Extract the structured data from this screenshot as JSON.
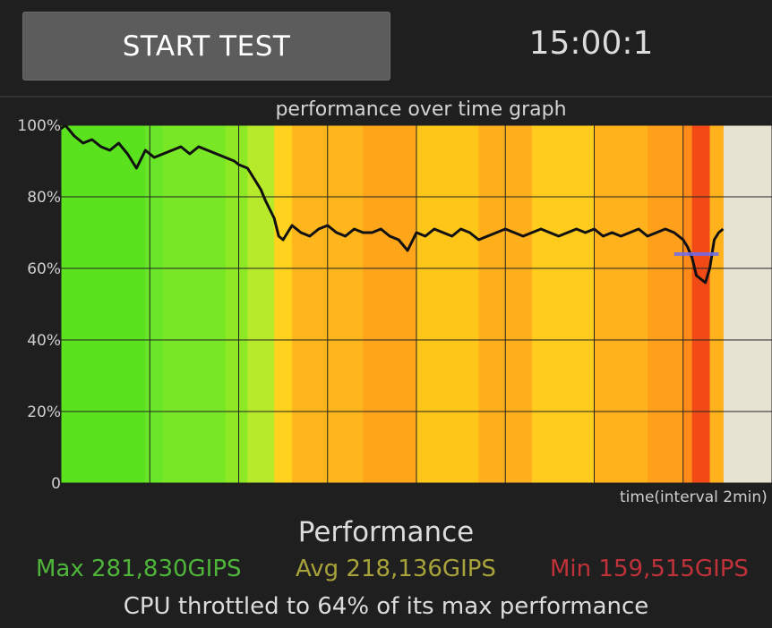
{
  "controls": {
    "start_label": "START TEST",
    "timer": "15:00:1"
  },
  "graph": {
    "title": "performance over time graph",
    "y_tick_labels": [
      "100%",
      "80%",
      "60%",
      "40%",
      "20%",
      "0"
    ],
    "x_label": "time(interval 2min)"
  },
  "chart_data": {
    "type": "line",
    "title": "performance over time graph",
    "xlabel": "time(interval 2min)",
    "ylabel": "",
    "ylim": [
      0,
      100
    ],
    "y_ticks": [
      0,
      20,
      40,
      60,
      80,
      100
    ],
    "x_interval_minutes": 2,
    "x_range_minutes": [
      0,
      16
    ],
    "grid": true,
    "threshold_value": 64,
    "series": [
      {
        "values_minutes": [
          0.0,
          0.1,
          0.3,
          0.5,
          0.7,
          0.9,
          1.1,
          1.3,
          1.5,
          1.7,
          1.9,
          2.1,
          2.3,
          2.5,
          2.7,
          2.9,
          3.1,
          3.3,
          3.5,
          3.7,
          3.9,
          4.0,
          4.2,
          4.4,
          4.5,
          4.6,
          4.8,
          4.9,
          5.0,
          5.2,
          5.4,
          5.6,
          5.8,
          6.0,
          6.2,
          6.4,
          6.6,
          6.8,
          7.0,
          7.2,
          7.4,
          7.6,
          7.8,
          8.0,
          8.2,
          8.4,
          8.6,
          8.8,
          9.0,
          9.2,
          9.4,
          9.6,
          9.8,
          10.0,
          10.2,
          10.4,
          10.6,
          10.8,
          11.0,
          11.2,
          11.4,
          11.6,
          11.8,
          12.0,
          12.2,
          12.4,
          12.6,
          12.8,
          13.0,
          13.2,
          13.4,
          13.6,
          13.8,
          14.0,
          14.1,
          14.2,
          14.3,
          14.4,
          14.5,
          14.6,
          14.7,
          14.8,
          14.9
        ],
        "values_percent": [
          99,
          100,
          97,
          95,
          96,
          94,
          93,
          95,
          92,
          88,
          93,
          91,
          92,
          93,
          94,
          92,
          94,
          93,
          92,
          91,
          90,
          89,
          88,
          84,
          82,
          79,
          74,
          69,
          68,
          72,
          70,
          69,
          71,
          72,
          70,
          69,
          71,
          70,
          70,
          71,
          69,
          68,
          65,
          70,
          69,
          71,
          70,
          69,
          71,
          70,
          68,
          69,
          70,
          71,
          70,
          69,
          70,
          71,
          70,
          69,
          70,
          71,
          70,
          71,
          69,
          70,
          69,
          70,
          71,
          69,
          70,
          71,
          70,
          68,
          66,
          63,
          58,
          57,
          56,
          60,
          68,
          70,
          71
        ]
      }
    ],
    "heat_bands": [
      {
        "from": 0.0,
        "to": 1.9,
        "color": "#5be21e"
      },
      {
        "from": 1.9,
        "to": 2.3,
        "color": "#6ae628"
      },
      {
        "from": 2.3,
        "to": 3.7,
        "color": "#78e826"
      },
      {
        "from": 3.7,
        "to": 4.2,
        "color": "#8ee824"
      },
      {
        "from": 4.2,
        "to": 4.8,
        "color": "#b8ea2c"
      },
      {
        "from": 4.8,
        "to": 5.2,
        "color": "#ffd21e"
      },
      {
        "from": 5.2,
        "to": 6.8,
        "color": "#ffb61c"
      },
      {
        "from": 6.8,
        "to": 8.0,
        "color": "#ffa519"
      },
      {
        "from": 8.0,
        "to": 9.4,
        "color": "#ffc61a"
      },
      {
        "from": 9.4,
        "to": 10.6,
        "color": "#ffaf1b"
      },
      {
        "from": 10.6,
        "to": 12.0,
        "color": "#ffcc1d"
      },
      {
        "from": 12.0,
        "to": 13.2,
        "color": "#ffb21c"
      },
      {
        "from": 13.2,
        "to": 14.0,
        "color": "#ffa01a"
      },
      {
        "from": 14.0,
        "to": 14.2,
        "color": "#ff8a1a"
      },
      {
        "from": 14.2,
        "to": 14.6,
        "color": "#f24a16"
      },
      {
        "from": 14.6,
        "to": 14.9,
        "color": "#ffb21c"
      }
    ],
    "colors": {
      "plot_background": "#e7e3d2",
      "line": "#111111",
      "grid": "#222222",
      "threshold": "#6d6df0"
    }
  },
  "performance": {
    "heading": "Performance",
    "max_text": "Max 281,830GIPS",
    "avg_text": "Avg 218,136GIPS",
    "min_text": "Min 159,515GIPS",
    "throttle_text": "CPU throttled to 64% of its max performance",
    "colors": {
      "max": "#4fb53a",
      "avg": "#a8a23a",
      "min": "#c0323a"
    }
  }
}
